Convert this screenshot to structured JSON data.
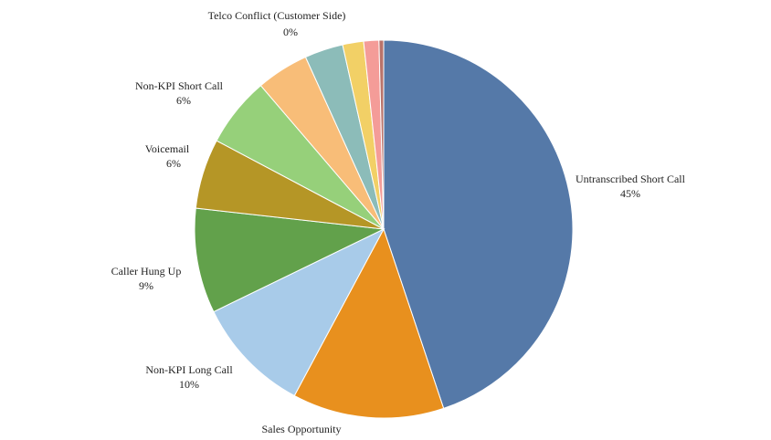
{
  "chart_data": {
    "type": "pie",
    "legend": "none",
    "slices": [
      {
        "label": "Untranscribed Short Call",
        "value": 45,
        "value_label": "45%",
        "color": "#5579a8"
      },
      {
        "label": "Sales Opportunity",
        "value": 13,
        "value_label": "",
        "color": "#e8901e"
      },
      {
        "label": "Non-KPI Long Call",
        "value": 10,
        "value_label": "10%",
        "color": "#a8cbe9"
      },
      {
        "label": "Caller Hung Up",
        "value": 9,
        "value_label": "9%",
        "color": "#62a14b"
      },
      {
        "label": "Voicemail",
        "value": 6,
        "value_label": "6%",
        "color": "#b59626"
      },
      {
        "label": "Non-KPI Short Call",
        "value": 6,
        "value_label": "6%",
        "color": "#96d07a"
      },
      {
        "label": "",
        "value": 4.5,
        "value_label": "",
        "color": "#f8bd78"
      },
      {
        "label": "",
        "value": 3.3,
        "value_label": "",
        "color": "#8cbcb9"
      },
      {
        "label": "",
        "value": 1.8,
        "value_label": "",
        "color": "#f2d066"
      },
      {
        "label": "",
        "value": 1.3,
        "value_label": "",
        "color": "#f49c98"
      },
      {
        "label": "Telco Conflict (Customer Side)",
        "value": 0.4,
        "value_label": "0%",
        "color": "#b9736a"
      }
    ]
  }
}
